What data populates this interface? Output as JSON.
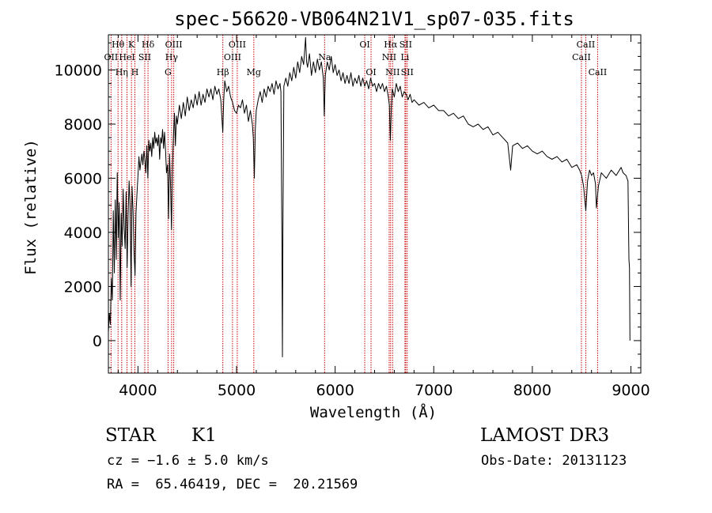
{
  "chart_data": {
    "type": "line",
    "title": "spec-56620-VB064N21V1_sp07-035.fits",
    "xlabel": "Wavelength (Å)",
    "ylabel": "Flux (relative)",
    "xlim": [
      3700,
      9100
    ],
    "ylim": [
      -1200,
      11300
    ],
    "x_ticks": [
      4000,
      5000,
      6000,
      7000,
      8000,
      9000
    ],
    "y_ticks": [
      0,
      2000,
      4000,
      6000,
      8000,
      10000
    ],
    "x_tick_labels": [
      "4000",
      "5000",
      "6000",
      "7000",
      "8000",
      "9000"
    ],
    "y_tick_labels": [
      "0",
      "2000",
      "4000",
      "6000",
      "8000",
      "10000"
    ],
    "grid": false,
    "series": [
      {
        "name": "spectrum",
        "points": [
          [
            3700,
            300
          ],
          [
            3710,
            1000
          ],
          [
            3720,
            600
          ],
          [
            3730,
            2300
          ],
          [
            3740,
            1500
          ],
          [
            3750,
            4800
          ],
          [
            3760,
            2500
          ],
          [
            3770,
            5200
          ],
          [
            3780,
            3000
          ],
          [
            3790,
            6200
          ],
          [
            3800,
            3800
          ],
          [
            3810,
            5100
          ],
          [
            3820,
            1500
          ],
          [
            3830,
            4700
          ],
          [
            3840,
            3500
          ],
          [
            3850,
            5600
          ],
          [
            3860,
            4200
          ],
          [
            3870,
            3400
          ],
          [
            3880,
            5500
          ],
          [
            3890,
            2700
          ],
          [
            3900,
            4600
          ],
          [
            3910,
            5900
          ],
          [
            3920,
            5000
          ],
          [
            3930,
            2000
          ],
          [
            3940,
            5700
          ],
          [
            3950,
            4800
          ],
          [
            3960,
            3300
          ],
          [
            3970,
            2400
          ],
          [
            3980,
            4700
          ],
          [
            3990,
            5400
          ],
          [
            4000,
            6100
          ],
          [
            4010,
            6800
          ],
          [
            4020,
            6300
          ],
          [
            4030,
            6600
          ],
          [
            4040,
            6900
          ],
          [
            4050,
            6500
          ],
          [
            4060,
            7000
          ],
          [
            4070,
            6700
          ],
          [
            4080,
            6200
          ],
          [
            4090,
            7200
          ],
          [
            4100,
            6000
          ],
          [
            4110,
            7400
          ],
          [
            4120,
            7000
          ],
          [
            4130,
            7300
          ],
          [
            4140,
            6800
          ],
          [
            4150,
            7500
          ],
          [
            4160,
            7100
          ],
          [
            4170,
            7700
          ],
          [
            4180,
            7300
          ],
          [
            4190,
            7500
          ],
          [
            4200,
            7200
          ],
          [
            4210,
            7600
          ],
          [
            4220,
            6700
          ],
          [
            4230,
            7500
          ],
          [
            4240,
            7300
          ],
          [
            4250,
            7800
          ],
          [
            4260,
            7100
          ],
          [
            4270,
            7700
          ],
          [
            4280,
            7000
          ],
          [
            4290,
            6200
          ],
          [
            4300,
            6500
          ],
          [
            4310,
            4500
          ],
          [
            4320,
            6900
          ],
          [
            4330,
            5800
          ],
          [
            4340,
            4100
          ],
          [
            4350,
            6400
          ],
          [
            4360,
            7600
          ],
          [
            4370,
            8400
          ],
          [
            4380,
            7200
          ],
          [
            4390,
            8300
          ],
          [
            4400,
            8000
          ],
          [
            4420,
            8700
          ],
          [
            4440,
            8200
          ],
          [
            4460,
            8800
          ],
          [
            4480,
            8300
          ],
          [
            4500,
            9000
          ],
          [
            4520,
            8500
          ],
          [
            4540,
            8900
          ],
          [
            4560,
            8600
          ],
          [
            4580,
            9100
          ],
          [
            4600,
            8700
          ],
          [
            4620,
            9200
          ],
          [
            4640,
            8700
          ],
          [
            4660,
            9100
          ],
          [
            4680,
            8800
          ],
          [
            4700,
            9300
          ],
          [
            4720,
            9000
          ],
          [
            4740,
            9300
          ],
          [
            4760,
            8900
          ],
          [
            4780,
            9400
          ],
          [
            4800,
            9100
          ],
          [
            4820,
            9300
          ],
          [
            4840,
            8900
          ],
          [
            4860,
            7700
          ],
          [
            4870,
            8900
          ],
          [
            4880,
            9600
          ],
          [
            4900,
            9200
          ],
          [
            4920,
            9400
          ],
          [
            4940,
            9000
          ],
          [
            4960,
            8800
          ],
          [
            4980,
            8500
          ],
          [
            5000,
            8400
          ],
          [
            5020,
            8700
          ],
          [
            5040,
            8600
          ],
          [
            5060,
            8900
          ],
          [
            5080,
            8400
          ],
          [
            5100,
            8700
          ],
          [
            5120,
            8100
          ],
          [
            5140,
            8500
          ],
          [
            5160,
            8000
          ],
          [
            5170,
            7500
          ],
          [
            5180,
            6000
          ],
          [
            5190,
            7800
          ],
          [
            5200,
            8500
          ],
          [
            5220,
            8900
          ],
          [
            5240,
            9200
          ],
          [
            5260,
            8800
          ],
          [
            5280,
            9300
          ],
          [
            5300,
            9000
          ],
          [
            5320,
            9400
          ],
          [
            5340,
            9200
          ],
          [
            5360,
            9500
          ],
          [
            5380,
            9100
          ],
          [
            5400,
            9600
          ],
          [
            5420,
            9300
          ],
          [
            5440,
            9500
          ],
          [
            5450,
            9200
          ],
          [
            5460,
            4000
          ],
          [
            5465,
            -600
          ],
          [
            5470,
            4000
          ],
          [
            5480,
            9400
          ],
          [
            5500,
            9700
          ],
          [
            5520,
            9400
          ],
          [
            5540,
            9900
          ],
          [
            5560,
            9600
          ],
          [
            5580,
            10100
          ],
          [
            5600,
            9700
          ],
          [
            5620,
            10300
          ],
          [
            5640,
            9900
          ],
          [
            5660,
            10500
          ],
          [
            5680,
            10200
          ],
          [
            5700,
            11200
          ],
          [
            5710,
            10300
          ],
          [
            5720,
            10100
          ],
          [
            5740,
            10600
          ],
          [
            5760,
            9800
          ],
          [
            5780,
            10300
          ],
          [
            5800,
            9900
          ],
          [
            5820,
            10400
          ],
          [
            5840,
            10000
          ],
          [
            5860,
            10300
          ],
          [
            5880,
            9700
          ],
          [
            5890,
            8300
          ],
          [
            5900,
            9800
          ],
          [
            5920,
            10300
          ],
          [
            5940,
            10000
          ],
          [
            5960,
            10500
          ],
          [
            5980,
            9900
          ],
          [
            6000,
            10200
          ],
          [
            6020,
            9800
          ],
          [
            6040,
            10000
          ],
          [
            6060,
            9600
          ],
          [
            6080,
            9900
          ],
          [
            6100,
            9500
          ],
          [
            6120,
            9800
          ],
          [
            6140,
            9500
          ],
          [
            6160,
            9900
          ],
          [
            6180,
            9400
          ],
          [
            6200,
            9700
          ],
          [
            6220,
            9500
          ],
          [
            6240,
            9800
          ],
          [
            6260,
            9400
          ],
          [
            6280,
            9700
          ],
          [
            6300,
            9400
          ],
          [
            6320,
            9600
          ],
          [
            6340,
            9300
          ],
          [
            6360,
            9700
          ],
          [
            6380,
            9400
          ],
          [
            6400,
            9500
          ],
          [
            6420,
            9200
          ],
          [
            6440,
            9500
          ],
          [
            6460,
            9300
          ],
          [
            6480,
            9500
          ],
          [
            6500,
            9200
          ],
          [
            6520,
            9400
          ],
          [
            6540,
            9000
          ],
          [
            6550,
            8700
          ],
          [
            6560,
            7400
          ],
          [
            6570,
            8600
          ],
          [
            6580,
            9300
          ],
          [
            6600,
            9000
          ],
          [
            6620,
            9500
          ],
          [
            6640,
            9200
          ],
          [
            6660,
            9400
          ],
          [
            6680,
            9000
          ],
          [
            6700,
            9200
          ],
          [
            6720,
            9100
          ],
          [
            6740,
            8900
          ],
          [
            6760,
            9100
          ],
          [
            6780,
            8800
          ],
          [
            6800,
            8900
          ],
          [
            6850,
            8700
          ],
          [
            6900,
            8800
          ],
          [
            6950,
            8600
          ],
          [
            7000,
            8700
          ],
          [
            7050,
            8500
          ],
          [
            7100,
            8500
          ],
          [
            7150,
            8300
          ],
          [
            7200,
            8400
          ],
          [
            7250,
            8200
          ],
          [
            7300,
            8300
          ],
          [
            7350,
            8000
          ],
          [
            7400,
            7900
          ],
          [
            7450,
            8000
          ],
          [
            7500,
            7800
          ],
          [
            7550,
            7900
          ],
          [
            7600,
            7600
          ],
          [
            7650,
            7700
          ],
          [
            7700,
            7500
          ],
          [
            7750,
            7300
          ],
          [
            7780,
            6300
          ],
          [
            7800,
            7200
          ],
          [
            7850,
            7300
          ],
          [
            7900,
            7100
          ],
          [
            7950,
            7200
          ],
          [
            8000,
            7000
          ],
          [
            8050,
            6900
          ],
          [
            8100,
            7000
          ],
          [
            8150,
            6800
          ],
          [
            8200,
            6700
          ],
          [
            8250,
            6800
          ],
          [
            8300,
            6600
          ],
          [
            8350,
            6700
          ],
          [
            8400,
            6400
          ],
          [
            8450,
            6500
          ],
          [
            8480,
            6300
          ],
          [
            8500,
            6100
          ],
          [
            8520,
            5700
          ],
          [
            8542,
            4800
          ],
          [
            8560,
            5900
          ],
          [
            8580,
            6300
          ],
          [
            8600,
            6100
          ],
          [
            8620,
            6200
          ],
          [
            8640,
            5800
          ],
          [
            8650,
            4900
          ],
          [
            8670,
            5700
          ],
          [
            8700,
            6200
          ],
          [
            8750,
            6000
          ],
          [
            8800,
            6300
          ],
          [
            8850,
            6100
          ],
          [
            8900,
            6400
          ],
          [
            8920,
            6200
          ],
          [
            8950,
            6100
          ],
          [
            8970,
            5900
          ],
          [
            8980,
            3000
          ],
          [
            8985,
            2700
          ],
          [
            8990,
            0
          ]
        ]
      }
    ],
    "spectral_lines": [
      {
        "label": "Hθ",
        "wavelength": 3798,
        "row": 1
      },
      {
        "label": "OII",
        "wavelength": 3727,
        "row": 2
      },
      {
        "label": "Hη",
        "wavelength": 3835,
        "row": 3
      },
      {
        "label": "K",
        "wavelength": 3934,
        "row": 1
      },
      {
        "label": "HeI",
        "wavelength": 3889,
        "row": 2
      },
      {
        "label": "H",
        "wavelength": 3969,
        "row": 3
      },
      {
        "label": "SII",
        "wavelength": 4069,
        "row": 2
      },
      {
        "label": "Hδ",
        "wavelength": 4102,
        "row": 1
      },
      {
        "label": "OIII",
        "wavelength": 4363,
        "row": 1
      },
      {
        "label": "Hγ",
        "wavelength": 4341,
        "row": 2
      },
      {
        "label": "G",
        "wavelength": 4305,
        "row": 3
      },
      {
        "label": "Hβ",
        "wavelength": 4861,
        "row": 3
      },
      {
        "label": "OIII",
        "wavelength": 5007,
        "row": 1
      },
      {
        "label": "OIII",
        "wavelength": 4959,
        "row": 2
      },
      {
        "label": "Mg",
        "wavelength": 5175,
        "row": 3
      },
      {
        "label": "Na",
        "wavelength": 5893,
        "row": 2
      },
      {
        "label": "OI",
        "wavelength": 6300,
        "row": 1
      },
      {
        "label": "OI",
        "wavelength": 6364,
        "row": 3
      },
      {
        "label": "Hα",
        "wavelength": 6563,
        "row": 1
      },
      {
        "label": "SII",
        "wavelength": 6716,
        "row": 1
      },
      {
        "label": "NII",
        "wavelength": 6548,
        "row": 2
      },
      {
        "label": "Li",
        "wavelength": 6708,
        "row": 2
      },
      {
        "label": "NII",
        "wavelength": 6583,
        "row": 3
      },
      {
        "label": "SII",
        "wavelength": 6731,
        "row": 3
      },
      {
        "label": "CaII",
        "wavelength": 8542,
        "row": 1
      },
      {
        "label": "CaII",
        "wavelength": 8498,
        "row": 2
      },
      {
        "label": "CaII",
        "wavelength": 8662,
        "row": 3
      }
    ],
    "colors": {
      "spectrum": "#000000",
      "lines": "#cc0000",
      "axes": "#000000"
    }
  },
  "info": {
    "class": "STAR",
    "subclass": "K1",
    "survey": "LAMOST DR3",
    "cz": "cz = −1.6 ± 5.0 km/s",
    "obs_date": "Obs-Date: 20131123",
    "coords": "RA =  65.46419, DEC =  20.21569"
  }
}
